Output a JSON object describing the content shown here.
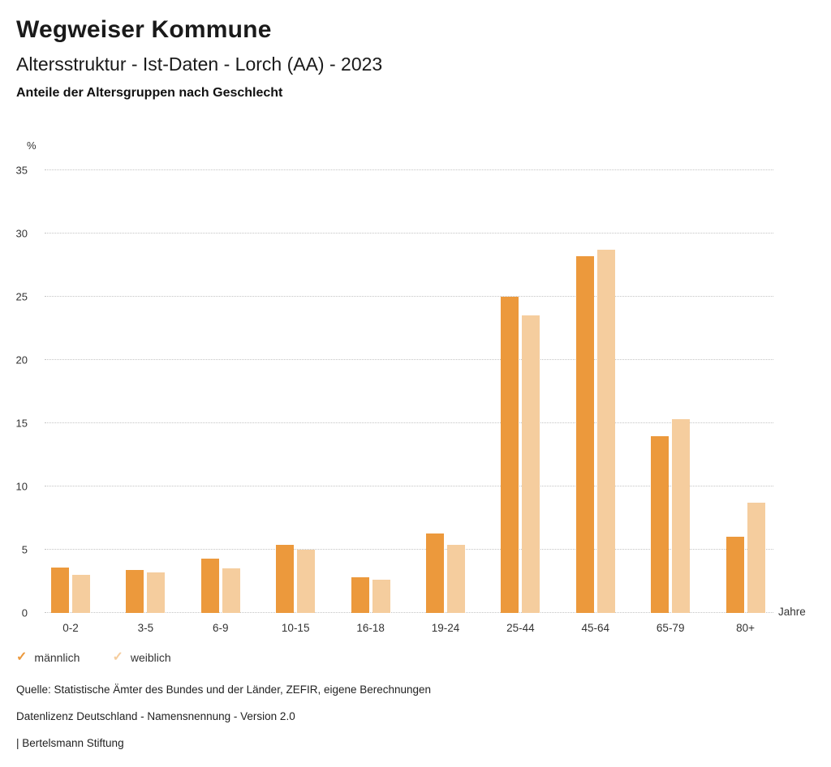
{
  "header": {
    "title": "Wegweiser Kommune",
    "subtitle": "Altersstruktur - Ist-Daten - Lorch (AA) - 2023",
    "caption": "Anteile der Altersgruppen nach Geschlecht"
  },
  "chart_data": {
    "type": "bar",
    "title": "Anteile der Altersgruppen nach Geschlecht",
    "categories": [
      "0-2",
      "3-5",
      "6-9",
      "10-15",
      "16-18",
      "19-24",
      "25-44",
      "45-64",
      "65-79",
      "80+"
    ],
    "series": [
      {
        "name": "männlich",
        "color": "#EC993C",
        "values": [
          3.6,
          3.4,
          4.3,
          5.4,
          2.8,
          6.3,
          25.0,
          28.2,
          14.0,
          6.0
        ]
      },
      {
        "name": "weiblich",
        "color": "#F5CD9E",
        "values": [
          3.0,
          3.2,
          3.5,
          5.0,
          2.6,
          5.4,
          23.5,
          28.7,
          15.3,
          8.7
        ]
      }
    ],
    "ylabel": "%",
    "xlabel": "Jahre",
    "ylim": [
      0,
      35
    ],
    "yticks": [
      0,
      5,
      10,
      15,
      20,
      25,
      30,
      35
    ],
    "grid": "horizontal-dotted",
    "legend_position": "bottom-left"
  },
  "legend": {
    "check_glyph": "✓",
    "items": [
      {
        "label": "männlich",
        "color": "#EC993C"
      },
      {
        "label": "weiblich",
        "color": "#F5CD9E"
      }
    ]
  },
  "footer": {
    "source": "Quelle: Statistische Ämter des Bundes und der Länder, ZEFIR, eigene Berechnungen",
    "license": "Datenlizenz Deutschland - Namensnennung - Version 2.0",
    "attribution": "| Bertelsmann Stiftung"
  }
}
